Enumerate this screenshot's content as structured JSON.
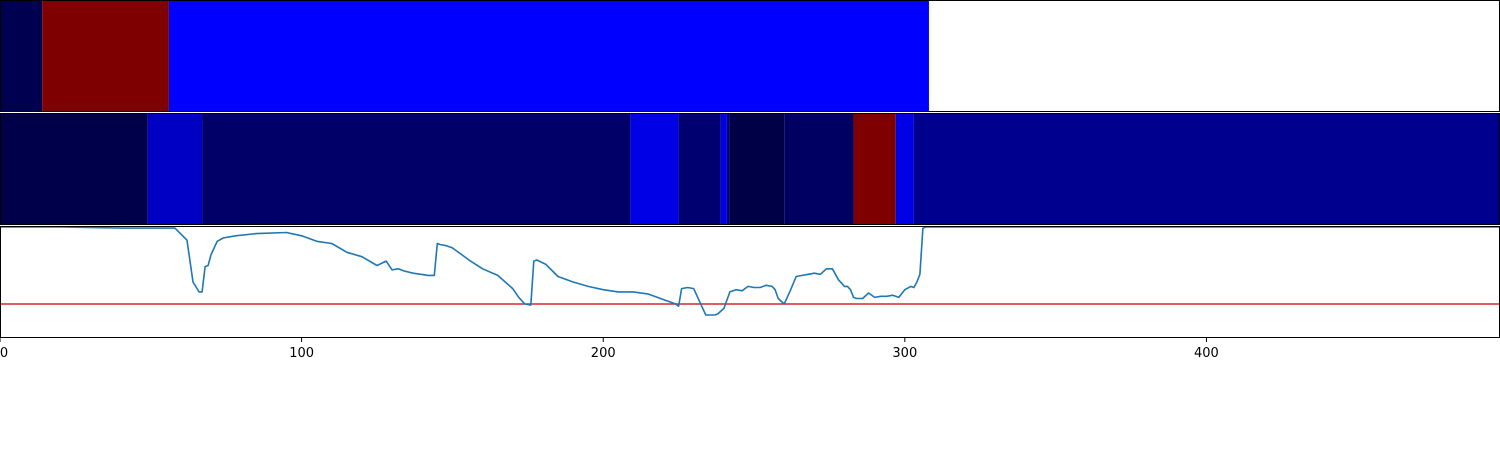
{
  "chart_data": {
    "x_ticks": [
      0,
      100,
      200,
      300,
      400
    ],
    "xlim": [
      0,
      497
    ],
    "panels": [
      {
        "type": "heatmap",
        "segments": [
          {
            "start": 0,
            "end": 14,
            "color": "#000050"
          },
          {
            "start": 14,
            "end": 56,
            "color": "#7f0000"
          },
          {
            "start": 56,
            "end": 308,
            "color": "#0000ff"
          }
        ]
      },
      {
        "type": "heatmap",
        "segments": [
          {
            "start": 0,
            "end": 49,
            "color": "#00004a"
          },
          {
            "start": 49,
            "end": 67,
            "color": "#0000c4"
          },
          {
            "start": 67,
            "end": 209,
            "color": "#000068"
          },
          {
            "start": 209,
            "end": 225,
            "color": "#0000e6"
          },
          {
            "start": 225,
            "end": 239,
            "color": "#000070"
          },
          {
            "start": 239,
            "end": 241,
            "color": "#0000e6"
          },
          {
            "start": 241,
            "end": 242,
            "color": "#000070"
          },
          {
            "start": 242,
            "end": 260,
            "color": "#000046"
          },
          {
            "start": 260,
            "end": 283,
            "color": "#000062"
          },
          {
            "start": 283,
            "end": 297,
            "color": "#7f0000"
          },
          {
            "start": 297,
            "end": 303,
            "color": "#0000e6"
          },
          {
            "start": 303,
            "end": 497,
            "color": "#00008e"
          }
        ]
      },
      {
        "type": "line",
        "ylim": [
          0,
          1
        ],
        "threshold": {
          "y": 0.3,
          "color": "#d62728"
        },
        "series": [
          {
            "color": "#1f77b4",
            "x": [
              0,
              20,
              40,
              50,
              58,
              62,
              64,
              66,
              67,
              68,
              69,
              70,
              72,
              74,
              78,
              85,
              95,
              100,
              105,
              110,
              115,
              120,
              125,
              128,
              130,
              132,
              134,
              137,
              142,
              144,
              145,
              146,
              148,
              150,
              153,
              156,
              160,
              165,
              170,
              172,
              174,
              176,
              177,
              178,
              181,
              185,
              190,
              195,
              200,
              205,
              210,
              215,
              218,
              220,
              222,
              224,
              225,
              226,
              228,
              230,
              232,
              234,
              236,
              237,
              238,
              240,
              242,
              244,
              246,
              248,
              250,
              252,
              254,
              256,
              257,
              258,
              260,
              262,
              264,
              266,
              268,
              270,
              272,
              274,
              276,
              278,
              280,
              281,
              282,
              283,
              284,
              286,
              288,
              290,
              292,
              294,
              296,
              298,
              300,
              302,
              303,
              304,
              305,
              306,
              307,
              308,
              320,
              497
            ],
            "y": [
              1.0,
              1.0,
              0.99,
              0.99,
              0.99,
              0.88,
              0.5,
              0.41,
              0.41,
              0.64,
              0.65,
              0.75,
              0.87,
              0.9,
              0.92,
              0.94,
              0.95,
              0.92,
              0.87,
              0.85,
              0.77,
              0.73,
              0.65,
              0.69,
              0.61,
              0.62,
              0.6,
              0.58,
              0.56,
              0.56,
              0.85,
              0.84,
              0.83,
              0.81,
              0.75,
              0.69,
              0.62,
              0.56,
              0.44,
              0.36,
              0.3,
              0.29,
              0.69,
              0.7,
              0.66,
              0.55,
              0.5,
              0.46,
              0.43,
              0.41,
              0.41,
              0.39,
              0.36,
              0.34,
              0.32,
              0.3,
              0.28,
              0.44,
              0.45,
              0.44,
              0.32,
              0.2,
              0.2,
              0.2,
              0.21,
              0.26,
              0.41,
              0.43,
              0.42,
              0.46,
              0.45,
              0.45,
              0.47,
              0.46,
              0.43,
              0.35,
              0.3,
              0.42,
              0.55,
              0.56,
              0.57,
              0.58,
              0.57,
              0.62,
              0.62,
              0.52,
              0.46,
              0.46,
              0.43,
              0.36,
              0.35,
              0.35,
              0.4,
              0.36,
              0.37,
              0.37,
              0.38,
              0.36,
              0.43,
              0.46,
              0.45,
              0.5,
              0.57,
              0.99,
              1.0,
              1.0,
              1.0,
              1.0
            ]
          }
        ]
      }
    ]
  }
}
